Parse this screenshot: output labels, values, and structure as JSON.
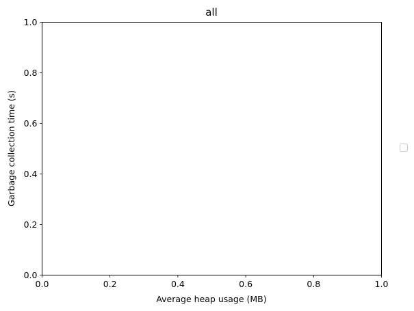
{
  "chart_data": {
    "type": "scatter",
    "title": "all",
    "xlabel": "Average heap usage (MB)",
    "ylabel": "Garbage collection time (s)",
    "xlim": [
      0.0,
      1.0
    ],
    "ylim": [
      0.0,
      1.0
    ],
    "xticks": [
      "0.0",
      "0.2",
      "0.4",
      "0.6",
      "0.8",
      "1.0"
    ],
    "yticks": [
      "0.0",
      "0.2",
      "0.4",
      "0.6",
      "0.8",
      "1.0"
    ],
    "grid": false,
    "legend": {
      "placement": "outside-right",
      "entries": []
    },
    "series": []
  }
}
